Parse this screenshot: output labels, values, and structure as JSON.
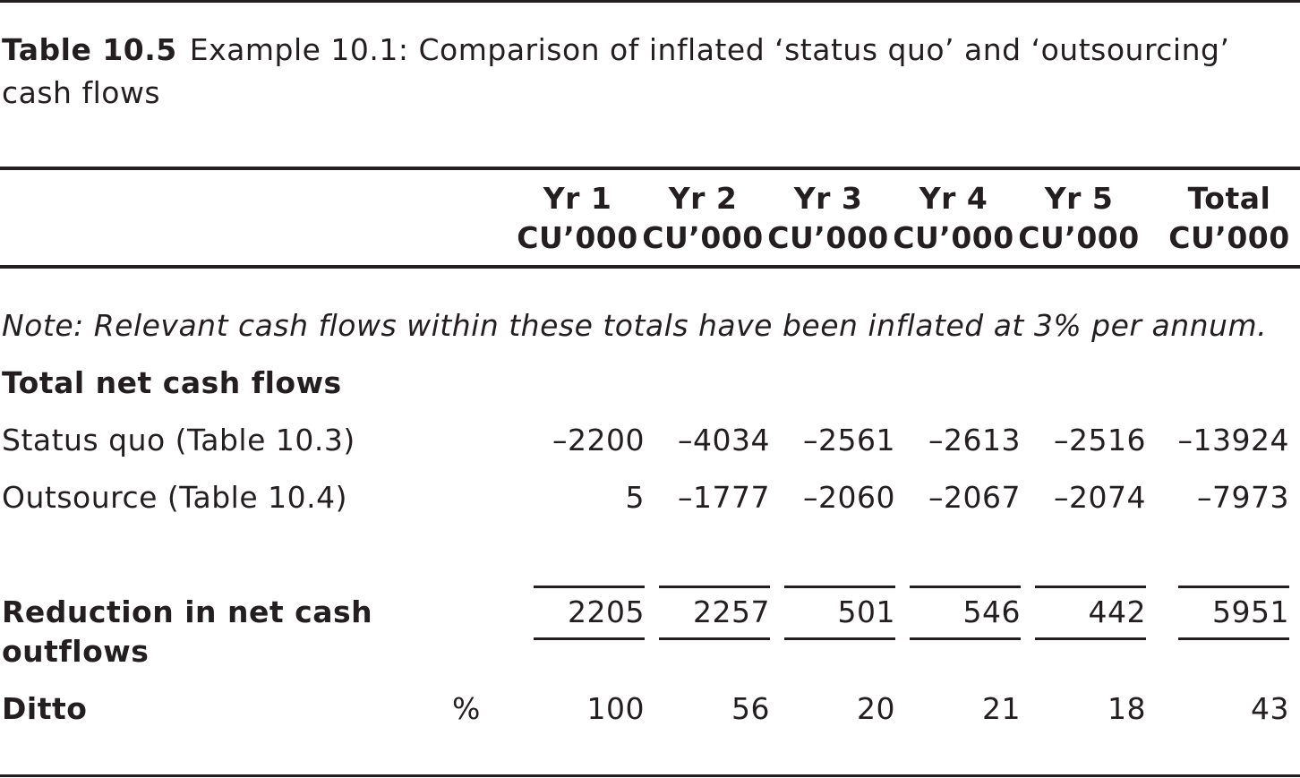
{
  "caption": {
    "number": "Table 10.5",
    "title": "Example 10.1: Comparison of inflated ‘status quo’ and ‘outsourcing’ cash flows"
  },
  "columns": [
    {
      "year": "Yr 1",
      "unit": "CU’000"
    },
    {
      "year": "Yr 2",
      "unit": "CU’000"
    },
    {
      "year": "Yr 3",
      "unit": "CU’000"
    },
    {
      "year": "Yr 4",
      "unit": "CU’000"
    },
    {
      "year": "Yr 5",
      "unit": "CU’000"
    },
    {
      "year": "Total",
      "unit": "CU’000"
    }
  ],
  "note": "Note: Relevant cash flows within these totals have been inflated at 3% per annum.",
  "section_heading": "Total net cash flows",
  "rows": [
    {
      "label": "Status quo (Table 10.3)",
      "values": [
        "–2200",
        "–4034",
        "–2561",
        "–2613",
        "–2516",
        "–13924"
      ]
    },
    {
      "label": "Outsource (Table 10.4)",
      "values": [
        "5",
        "–1777",
        "–2060",
        "–2067",
        "–2074",
        "–7973"
      ]
    }
  ],
  "reduction": {
    "label_line1": "Reduction in net cash",
    "label_line2": "outflows",
    "values": [
      "2205",
      "2257",
      "501",
      "546",
      "442",
      "5951"
    ]
  },
  "ditto": {
    "label": "Ditto",
    "unit": "%",
    "values": [
      "100",
      "56",
      "20",
      "21",
      "18",
      "43"
    ]
  }
}
